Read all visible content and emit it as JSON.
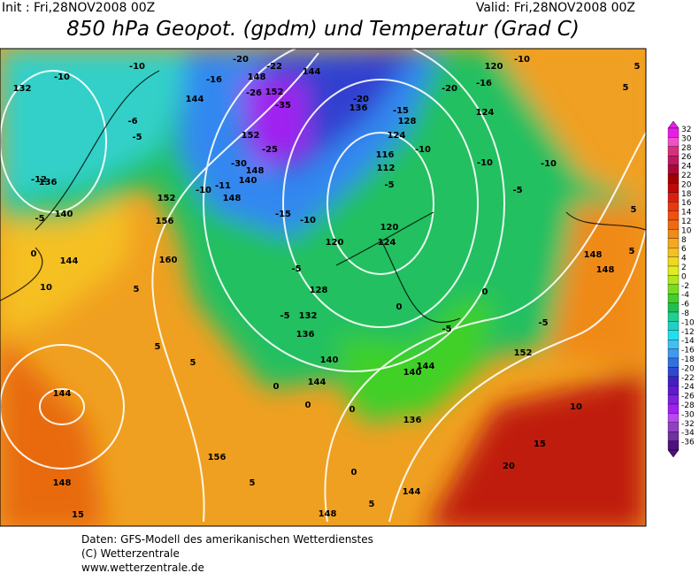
{
  "header": {
    "init": "Init : Fri,28NOV2008 00Z",
    "valid": "Valid: Fri,28NOV2008 00Z",
    "title": "850 hPa Geopot. (gpdm) und Temperatur (Grad C)"
  },
  "colorbar": {
    "levels": [
      32,
      30,
      28,
      26,
      24,
      22,
      20,
      18,
      16,
      14,
      12,
      10,
      8,
      6,
      4,
      2,
      0,
      -2,
      -4,
      -6,
      -8,
      -10,
      -12,
      -14,
      -16,
      -18,
      -20,
      -22,
      -24,
      -26,
      -28,
      -30,
      -32,
      -34,
      -36
    ],
    "colors": [
      "#e81ee8",
      "#f050c8",
      "#d8307a",
      "#c01860",
      "#a80838",
      "#a00000",
      "#c00808",
      "#d82010",
      "#e83810",
      "#f05010",
      "#f06a10",
      "#f08a18",
      "#f5a820",
      "#f5c020",
      "#f0d820",
      "#e0ec20",
      "#b0e820",
      "#78dc20",
      "#40d028",
      "#20c050",
      "#20d090",
      "#20d0c8",
      "#20e0f0",
      "#40c0f0",
      "#4098f0",
      "#3070e0",
      "#3048d0",
      "#4020c0",
      "#6018d0",
      "#8020e0",
      "#a020f0",
      "#b848f0",
      "#9040c0",
      "#7030a0",
      "#501080"
    ]
  },
  "map": {
    "labels": [
      -10,
      132,
      -10,
      -6,
      -5,
      144,
      -16,
      -20,
      -22,
      144,
      148,
      -26,
      152,
      -35,
      152,
      -30,
      -25,
      148,
      140,
      -10,
      -11,
      148,
      -15,
      -10,
      120,
      -5,
      128,
      -5,
      132,
      136,
      140,
      144,
      -20,
      136,
      -15,
      128,
      124,
      -10,
      116,
      112,
      -5,
      120,
      124,
      -20,
      -16,
      120,
      -10,
      124,
      -10,
      -10,
      -5,
      -12,
      136,
      140,
      -5,
      152,
      156,
      160,
      144,
      0,
      5,
      10,
      5,
      5,
      0,
      0,
      0,
      140,
      144,
      136,
      152,
      -5,
      -5,
      0,
      0,
      148,
      148,
      5,
      5,
      5,
      5,
      10,
      15,
      20,
      156,
      148,
      144,
      15,
      5,
      5,
      148,
      144,
      0
    ]
  },
  "footer": {
    "line1": "Daten: GFS-Modell des amerikanischen Wetterdienstes",
    "line2": "(C) Wetterzentrale",
    "line3": "www.wetterzentrale.de"
  }
}
